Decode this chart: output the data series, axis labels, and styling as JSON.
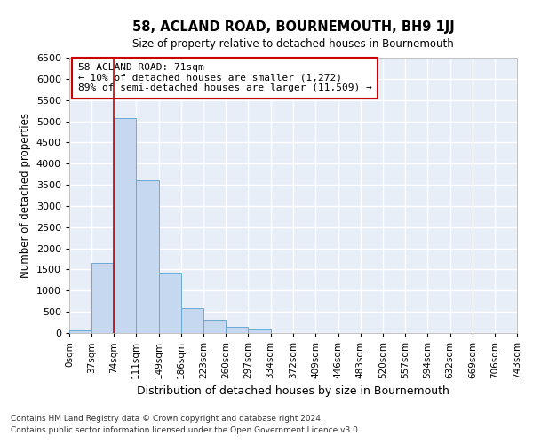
{
  "title": "58, ACLAND ROAD, BOURNEMOUTH, BH9 1JJ",
  "subtitle": "Size of property relative to detached houses in Bournemouth",
  "xlabel": "Distribution of detached houses by size in Bournemouth",
  "ylabel": "Number of detached properties",
  "footnote1": "Contains HM Land Registry data © Crown copyright and database right 2024.",
  "footnote2": "Contains public sector information licensed under the Open Government Licence v3.0.",
  "annotation_title": "58 ACLAND ROAD: 71sqm",
  "annotation_line1": "← 10% of detached houses are smaller (1,272)",
  "annotation_line2": "89% of semi-detached houses are larger (11,509) →",
  "property_size": 71,
  "bin_edges": [
    0,
    37,
    74,
    111,
    149,
    186,
    223,
    260,
    297,
    334,
    372,
    409,
    446,
    483,
    520,
    557,
    594,
    632,
    669,
    706,
    743
  ],
  "bin_labels": [
    "0sqm",
    "37sqm",
    "74sqm",
    "111sqm",
    "149sqm",
    "186sqm",
    "223sqm",
    "260sqm",
    "297sqm",
    "334sqm",
    "372sqm",
    "409sqm",
    "446sqm",
    "483sqm",
    "520sqm",
    "557sqm",
    "594sqm",
    "632sqm",
    "669sqm",
    "706sqm",
    "743sqm"
  ],
  "bar_heights": [
    60,
    1650,
    5080,
    3600,
    1420,
    590,
    310,
    150,
    80,
    0,
    0,
    0,
    0,
    0,
    0,
    0,
    0,
    0,
    0,
    0
  ],
  "bar_color": "#c5d8f0",
  "bar_edge_color": "#6baad4",
  "red_line_x": 74,
  "annotation_box_color": "#ffffff",
  "annotation_box_edge": "#cc0000",
  "bg_color": "#e8eef8",
  "grid_color": "#ffffff",
  "fig_bg_color": "#ffffff",
  "ylim": [
    0,
    6500
  ],
  "yticks": [
    0,
    500,
    1000,
    1500,
    2000,
    2500,
    3000,
    3500,
    4000,
    4500,
    5000,
    5500,
    6000,
    6500
  ]
}
